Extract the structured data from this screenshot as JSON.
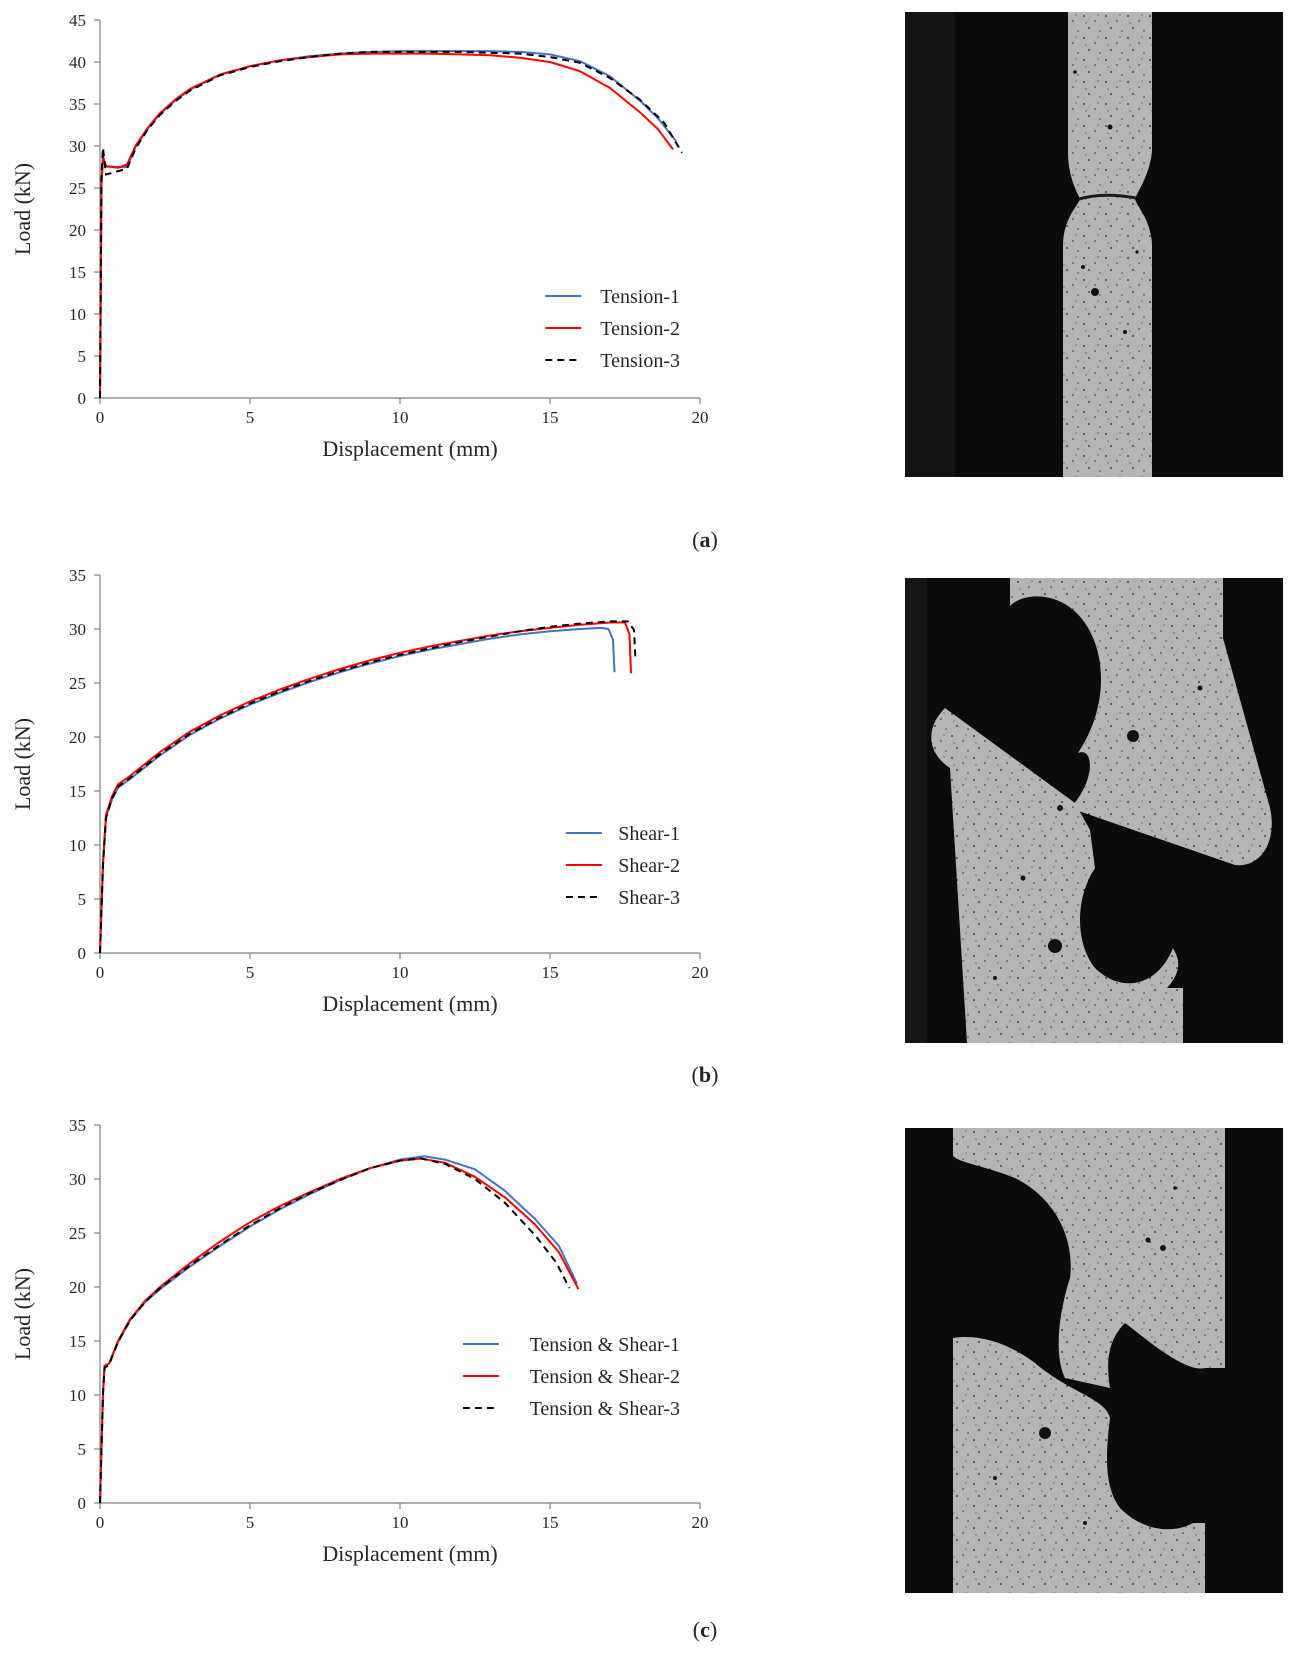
{
  "chart_data": [
    {
      "type": "line",
      "panel": "a",
      "xlabel": "Displacement (mm)",
      "ylabel": "Load (kN)",
      "xlim": [
        0,
        20
      ],
      "ylim": [
        0,
        45
      ],
      "xticks": [
        0,
        5,
        10,
        15,
        20
      ],
      "yticks": [
        0,
        5,
        10,
        15,
        20,
        25,
        30,
        35,
        40,
        45
      ],
      "grid": false,
      "legend_position": "bottom-right",
      "series": [
        {
          "name": "Tension-1",
          "color": "#4472C4",
          "dash": "solid",
          "x": [
            0,
            0.05,
            0.1,
            0.2,
            0.6,
            0.9,
            1.2,
            1.6,
            2.0,
            2.5,
            3.0,
            4.0,
            5.0,
            6.0,
            7.0,
            8.0,
            9.0,
            10.0,
            11.0,
            12.0,
            13.0,
            14.0,
            15.0,
            16.0,
            17.0,
            18.0,
            18.6,
            19.2
          ],
          "y": [
            0,
            26.0,
            28.6,
            27.6,
            27.5,
            27.5,
            30.0,
            32.1,
            33.8,
            35.4,
            36.7,
            38.5,
            39.5,
            40.2,
            40.7,
            41.0,
            41.2,
            41.3,
            41.3,
            41.3,
            41.3,
            41.2,
            40.9,
            40.1,
            38.3,
            35.4,
            33.3,
            30.6
          ]
        },
        {
          "name": "Tension-2",
          "color": "#FF0000",
          "dash": "solid",
          "x": [
            0,
            0.05,
            0.1,
            0.2,
            0.6,
            0.9,
            1.2,
            1.6,
            2.0,
            2.5,
            3.0,
            4.0,
            5.0,
            6.0,
            7.0,
            8.0,
            9.0,
            10.0,
            11.0,
            12.0,
            13.0,
            14.0,
            15.0,
            16.0,
            17.0,
            18.0,
            18.6,
            19.1
          ],
          "y": [
            0,
            25.5,
            28.7,
            27.6,
            27.4,
            27.8,
            30.1,
            32.2,
            33.9,
            35.5,
            36.8,
            38.5,
            39.5,
            40.2,
            40.6,
            40.9,
            41.0,
            41.0,
            41.0,
            40.9,
            40.8,
            40.5,
            40.0,
            38.9,
            36.9,
            34.0,
            32.0,
            29.6
          ]
        },
        {
          "name": "Tension-3",
          "color": "#000000",
          "dash": "dashed",
          "x": [
            0,
            0.05,
            0.1,
            0.2,
            0.6,
            0.9,
            1.2,
            1.6,
            2.0,
            2.5,
            3.0,
            4.0,
            5.0,
            6.0,
            7.0,
            8.0,
            9.0,
            10.0,
            11.0,
            12.0,
            13.0,
            14.0,
            15.0,
            16.0,
            17.0,
            18.0,
            18.8,
            19.4
          ],
          "y": [
            0,
            26.5,
            29.8,
            26.6,
            27.0,
            27.3,
            29.8,
            32.0,
            33.7,
            35.3,
            36.6,
            38.4,
            39.4,
            40.1,
            40.6,
            41.0,
            41.2,
            41.2,
            41.2,
            41.2,
            41.1,
            41.0,
            40.6,
            39.9,
            38.1,
            35.5,
            32.8,
            29.2
          ]
        }
      ]
    },
    {
      "type": "line",
      "panel": "b",
      "xlabel": "Displacement (mm)",
      "ylabel": "Load (kN)",
      "xlim": [
        0,
        20
      ],
      "ylim": [
        0,
        35
      ],
      "xticks": [
        0,
        5,
        10,
        15,
        20
      ],
      "yticks": [
        0,
        5,
        10,
        15,
        20,
        25,
        30,
        35
      ],
      "grid": false,
      "legend_position": "bottom-right",
      "series": [
        {
          "name": "Shear-1",
          "color": "#4472C4",
          "dash": "solid",
          "x": [
            0,
            0.1,
            0.2,
            0.4,
            0.6,
            1.0,
            2.0,
            3.0,
            4.0,
            5.0,
            6.0,
            7.0,
            8.0,
            9.0,
            10.0,
            11.0,
            12.0,
            13.0,
            14.0,
            15.0,
            16.0,
            16.7,
            16.95,
            17.1,
            17.15
          ],
          "y": [
            0,
            8.0,
            12.6,
            14.2,
            15.3,
            16.1,
            18.3,
            20.2,
            21.7,
            23.0,
            24.1,
            25.1,
            26.0,
            26.8,
            27.5,
            28.1,
            28.6,
            29.1,
            29.5,
            29.8,
            30.0,
            30.1,
            30.0,
            29.0,
            26.0
          ]
        },
        {
          "name": "Shear-2",
          "color": "#FF0000",
          "dash": "solid",
          "x": [
            0,
            0.1,
            0.2,
            0.4,
            0.6,
            1.0,
            2.0,
            3.0,
            4.0,
            5.0,
            6.0,
            7.0,
            8.0,
            9.0,
            10.0,
            11.0,
            12.0,
            13.0,
            14.0,
            15.0,
            16.0,
            17.0,
            17.5,
            17.65,
            17.7
          ],
          "y": [
            0,
            8.5,
            12.8,
            14.5,
            15.6,
            16.4,
            18.6,
            20.5,
            22.0,
            23.3,
            24.4,
            25.4,
            26.3,
            27.1,
            27.8,
            28.4,
            28.9,
            29.4,
            29.8,
            30.1,
            30.4,
            30.6,
            30.6,
            29.5,
            25.9
          ]
        },
        {
          "name": "Shear-3",
          "color": "#000000",
          "dash": "dashed",
          "x": [
            0,
            0.1,
            0.2,
            0.4,
            0.6,
            1.0,
            2.0,
            3.0,
            4.0,
            5.0,
            6.0,
            7.0,
            8.0,
            9.0,
            10.0,
            11.0,
            12.0,
            13.0,
            14.0,
            15.0,
            16.0,
            17.0,
            17.6,
            17.8,
            17.85
          ],
          "y": [
            0,
            8.2,
            12.5,
            14.3,
            15.4,
            16.2,
            18.4,
            20.3,
            21.8,
            23.1,
            24.2,
            25.2,
            26.1,
            26.9,
            27.6,
            28.2,
            28.8,
            29.3,
            29.8,
            30.2,
            30.5,
            30.7,
            30.7,
            29.9,
            27.1
          ]
        }
      ]
    },
    {
      "type": "line",
      "panel": "c",
      "xlabel": "Displacement (mm)",
      "ylabel": "Load (kN)",
      "xlim": [
        0,
        20
      ],
      "ylim": [
        0,
        35
      ],
      "xticks": [
        0,
        5,
        10,
        15,
        20
      ],
      "yticks": [
        0,
        5,
        10,
        15,
        20,
        25,
        30,
        35
      ],
      "grid": false,
      "legend_position": "bottom-right",
      "series": [
        {
          "name": "Tension & Shear-1",
          "color": "#4472C4",
          "dash": "solid",
          "x": [
            0,
            0.1,
            0.15,
            0.3,
            0.6,
            1.0,
            1.5,
            2.0,
            3.0,
            4.0,
            5.0,
            6.0,
            7.0,
            8.0,
            9.0,
            10.0,
            10.8,
            11.5,
            12.5,
            13.5,
            14.5,
            15.3,
            15.9
          ],
          "y": [
            0,
            10.0,
            12.6,
            12.9,
            14.9,
            16.9,
            18.6,
            19.8,
            21.9,
            23.8,
            25.6,
            27.2,
            28.6,
            29.9,
            31.0,
            31.8,
            32.1,
            31.8,
            30.9,
            28.9,
            26.3,
            23.8,
            20.3
          ]
        },
        {
          "name": "Tension & Shear-2",
          "color": "#FF0000",
          "dash": "solid",
          "x": [
            0,
            0.1,
            0.15,
            0.3,
            0.6,
            1.0,
            1.5,
            2.0,
            3.0,
            4.0,
            5.0,
            6.0,
            7.0,
            8.0,
            9.0,
            10.0,
            10.7,
            11.5,
            12.5,
            13.5,
            14.5,
            15.3,
            15.95
          ],
          "y": [
            0,
            10.3,
            12.7,
            12.9,
            15.0,
            17.0,
            18.7,
            20.0,
            22.2,
            24.2,
            26.0,
            27.5,
            28.8,
            30.0,
            31.0,
            31.7,
            31.9,
            31.5,
            30.2,
            28.3,
            25.8,
            23.2,
            19.8
          ]
        },
        {
          "name": "Tension & Shear-3",
          "color": "#000000",
          "dash": "dashed",
          "x": [
            0,
            0.1,
            0.15,
            0.3,
            0.6,
            1.0,
            1.5,
            2.0,
            3.0,
            4.0,
            5.0,
            6.0,
            7.0,
            8.0,
            9.0,
            10.0,
            10.7,
            11.5,
            12.5,
            13.5,
            14.5,
            15.2,
            15.65
          ],
          "y": [
            0,
            10.1,
            12.5,
            12.8,
            14.9,
            16.9,
            18.6,
            19.9,
            22.0,
            23.9,
            25.7,
            27.3,
            28.7,
            29.9,
            31.0,
            31.7,
            31.9,
            31.4,
            30.0,
            27.8,
            24.8,
            22.3,
            19.9
          ]
        }
      ]
    }
  ],
  "captions": [
    {
      "open": "(",
      "letter": "a",
      "close": ")"
    },
    {
      "open": "(",
      "letter": "b",
      "close": ")"
    },
    {
      "open": "(",
      "letter": "c",
      "close": ")"
    }
  ],
  "photos": [
    {
      "subject": "tension-specimen-photo"
    },
    {
      "subject": "shear-specimen-photo"
    },
    {
      "subject": "tension-shear-specimen-photo"
    }
  ],
  "colors": {
    "axis": "#7f7f7f",
    "text": "#262626",
    "photo_bg": "#0b0b0d",
    "specimen": "#b9b9b9"
  }
}
